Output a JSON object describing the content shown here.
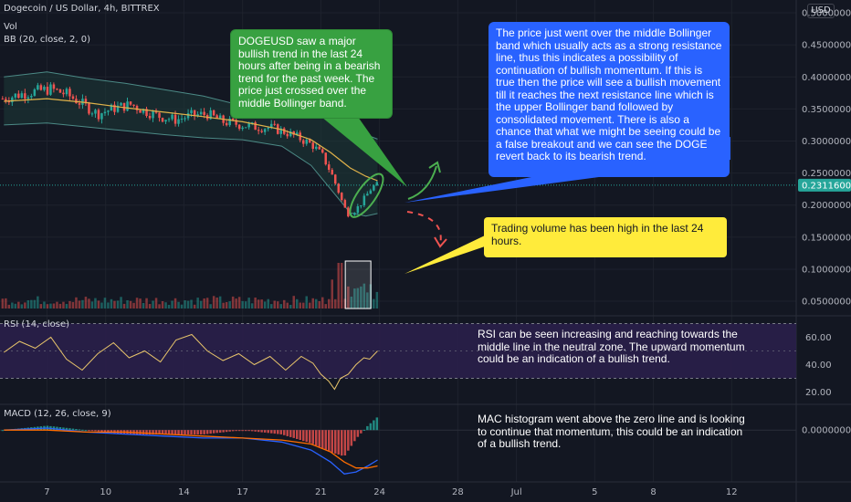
{
  "header": {
    "title": "Dogecoin / US Dollar, 4h, BITTREX",
    "vol": "Vol",
    "bb": "BB (20, close, 2, 0)",
    "rsi": "RSI (14, close)",
    "macd": "MACD (12, 26, close, 9)",
    "currency": "USD"
  },
  "notes": {
    "green": "DOGEUSD saw a major bullish trend in the last 24 hours after being in a bearish trend for the past week. The price just crossed over the middle Bollinger band.",
    "blue": "The price just went over the middle Bollinger band which usually acts as a strong resistance line, thus this indicates a possibility of continuation of bullish momentum. If this is true then the price will see a bullish movement till it reaches the next resistance line which is the upper Bollinger band followed by consolidated movement. There is also a chance that what we might be seeing could be a false breakout and we can see the DOGE revert back to its bearish trend.",
    "yellow": "Trading volume has been high in the last 24 hours.",
    "rsi": "RSI can be seen increasing and reaching towards the middle line in the neutral zone. The upward momentum could be an indication of a bullish trend.",
    "macd": "MAC histogram went above the zero line and is looking to continue that momentum, this could be an indication of a bullish trend."
  },
  "colors": {
    "background": "#131722",
    "up": "#26a69a",
    "down": "#ef5350",
    "bb_basis": "#e0b24a",
    "bb_band": "#4c8a86",
    "bb_fill": "#1d3a38",
    "rsi_line": "#e8c56b",
    "rsi_band": "#2a1f4a",
    "macd_line": "#2962ff",
    "signal_line": "#ff6d00",
    "green_note": "#38a141",
    "blue_note": "#2962ff",
    "yellow_note": "#ffeb3b"
  },
  "chart_data": [
    {
      "type": "candlestick",
      "name": "price",
      "x_ticks": [
        "7",
        "10",
        "14",
        "17",
        "21",
        "24",
        "28",
        "Jul",
        "5",
        "8",
        "12"
      ],
      "x_tick_days": [
        7,
        10,
        14,
        17,
        21,
        24,
        28,
        31,
        35,
        38,
        42
      ],
      "x_range": [
        4.6,
        45.3
      ],
      "y_ticks": [
        "0.50000000",
        "0.45000000",
        "0.40000000",
        "0.35000000",
        "0.30000000",
        "0.25000000",
        "0.20000000",
        "0.15000000",
        "0.10000000",
        "0.05000000"
      ],
      "y_range": [
        0.033,
        0.52
      ],
      "current_price": "0.23116000",
      "close_path": [
        [
          4.8,
          0.366
        ],
        [
          5.5,
          0.372
        ],
        [
          6.3,
          0.377
        ],
        [
          7.2,
          0.381
        ],
        [
          8.0,
          0.373
        ],
        [
          8.8,
          0.358
        ],
        [
          9.6,
          0.342
        ],
        [
          10.4,
          0.351
        ],
        [
          11.3,
          0.357
        ],
        [
          12.0,
          0.347
        ],
        [
          12.8,
          0.338
        ],
        [
          13.6,
          0.333
        ],
        [
          14.4,
          0.34
        ],
        [
          15.2,
          0.342
        ],
        [
          16.0,
          0.33
        ],
        [
          16.8,
          0.326
        ],
        [
          17.6,
          0.322
        ],
        [
          18.4,
          0.321
        ],
        [
          19.2,
          0.314
        ],
        [
          20.0,
          0.303
        ],
        [
          20.6,
          0.293
        ],
        [
          21.1,
          0.276
        ],
        [
          21.5,
          0.252
        ],
        [
          21.9,
          0.222
        ],
        [
          22.2,
          0.196
        ],
        [
          22.4,
          0.187
        ],
        [
          22.8,
          0.193
        ],
        [
          23.3,
          0.213
        ],
        [
          23.6,
          0.228
        ],
        [
          23.9,
          0.231
        ]
      ],
      "bb_basis_path": [
        [
          4.8,
          0.362
        ],
        [
          7.0,
          0.366
        ],
        [
          9.0,
          0.36
        ],
        [
          11.0,
          0.352
        ],
        [
          13.0,
          0.345
        ],
        [
          15.0,
          0.338
        ],
        [
          17.0,
          0.33
        ],
        [
          19.0,
          0.318
        ],
        [
          20.5,
          0.302
        ],
        [
          21.5,
          0.282
        ],
        [
          22.5,
          0.258
        ],
        [
          23.3,
          0.245
        ],
        [
          23.9,
          0.238
        ]
      ],
      "bb_upper_path": [
        [
          4.8,
          0.4
        ],
        [
          7.0,
          0.408
        ],
        [
          9.0,
          0.398
        ],
        [
          11.0,
          0.39
        ],
        [
          13.0,
          0.38
        ],
        [
          15.0,
          0.37
        ],
        [
          17.0,
          0.355
        ],
        [
          19.0,
          0.345
        ],
        [
          20.5,
          0.34
        ],
        [
          21.5,
          0.335
        ],
        [
          22.5,
          0.328
        ],
        [
          23.3,
          0.31
        ],
        [
          23.9,
          0.303
        ]
      ],
      "bb_lower_path": [
        [
          4.8,
          0.325
        ],
        [
          7.0,
          0.328
        ],
        [
          9.0,
          0.322
        ],
        [
          11.0,
          0.316
        ],
        [
          13.0,
          0.31
        ],
        [
          15.0,
          0.305
        ],
        [
          17.0,
          0.302
        ],
        [
          19.0,
          0.292
        ],
        [
          20.5,
          0.262
        ],
        [
          21.5,
          0.225
        ],
        [
          22.5,
          0.188
        ],
        [
          23.3,
          0.183
        ],
        [
          23.9,
          0.187
        ]
      ]
    },
    {
      "type": "bar",
      "name": "volume",
      "note": "relative volume, highest in the last 24 hours",
      "spike_at_day": 22.3
    },
    {
      "type": "line",
      "name": "rsi",
      "y_ticks": [
        "60.00",
        "40.00",
        "20.00"
      ],
      "y_range": [
        13,
        73
      ],
      "band": [
        30,
        70
      ],
      "points": [
        [
          4.8,
          49
        ],
        [
          5.6,
          57
        ],
        [
          6.4,
          52
        ],
        [
          7.2,
          60
        ],
        [
          8.0,
          44
        ],
        [
          8.8,
          36
        ],
        [
          9.6,
          48
        ],
        [
          10.4,
          56
        ],
        [
          11.2,
          45
        ],
        [
          12.0,
          50
        ],
        [
          12.8,
          42
        ],
        [
          13.6,
          58
        ],
        [
          14.4,
          62
        ],
        [
          15.2,
          50
        ],
        [
          16.0,
          43
        ],
        [
          16.8,
          48
        ],
        [
          17.6,
          40
        ],
        [
          18.4,
          46
        ],
        [
          19.2,
          36
        ],
        [
          20.0,
          46
        ],
        [
          20.6,
          41
        ],
        [
          21.0,
          33
        ],
        [
          21.4,
          28
        ],
        [
          21.7,
          22
        ],
        [
          22.0,
          30
        ],
        [
          22.4,
          33
        ],
        [
          22.8,
          40
        ],
        [
          23.2,
          45
        ],
        [
          23.5,
          44
        ],
        [
          23.9,
          50
        ]
      ]
    },
    {
      "type": "line",
      "name": "macd",
      "y_ticks": [
        "0.00000000"
      ],
      "y_range": [
        -0.026,
        0.012
      ],
      "macd_points": [
        [
          4.8,
          0.0
        ],
        [
          7,
          0.001
        ],
        [
          9,
          -0.001
        ],
        [
          11,
          -0.002
        ],
        [
          13,
          -0.003
        ],
        [
          15,
          -0.004
        ],
        [
          17,
          -0.004
        ],
        [
          19,
          -0.006
        ],
        [
          20.5,
          -0.01
        ],
        [
          21.5,
          -0.016
        ],
        [
          22.2,
          -0.022
        ],
        [
          22.8,
          -0.021
        ],
        [
          23.4,
          -0.018
        ],
        [
          23.9,
          -0.015
        ]
      ],
      "signal_points": [
        [
          4.8,
          0.0
        ],
        [
          7,
          0.0
        ],
        [
          9,
          -0.001
        ],
        [
          11,
          -0.001
        ],
        [
          13,
          -0.002
        ],
        [
          15,
          -0.003
        ],
        [
          17,
          -0.004
        ],
        [
          19,
          -0.005
        ],
        [
          20.5,
          -0.007
        ],
        [
          21.5,
          -0.011
        ],
        [
          22.2,
          -0.016
        ],
        [
          22.8,
          -0.019
        ],
        [
          23.4,
          -0.019
        ],
        [
          23.9,
          -0.018
        ]
      ]
    }
  ]
}
